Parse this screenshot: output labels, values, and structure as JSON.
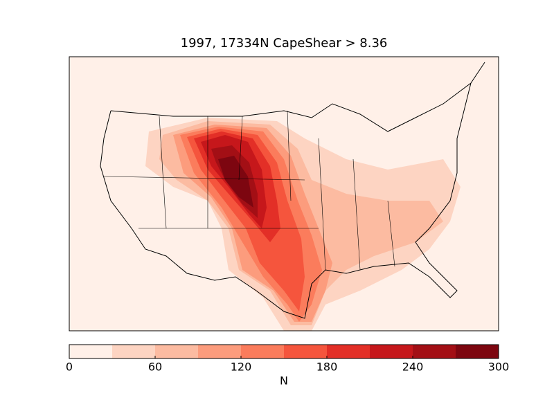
{
  "chart_data": {
    "type": "contour-map",
    "title": "1997, 17334N CapeShear > 8.36",
    "colorbar": {
      "label": "N",
      "lim": [
        0,
        300
      ],
      "ticks": [
        0,
        60,
        120,
        180,
        240,
        300
      ],
      "levels": [
        0,
        30,
        60,
        90,
        120,
        150,
        180,
        210,
        240,
        270,
        300
      ],
      "colors": [
        "#fff0e8",
        "#fdd4c2",
        "#fcbba1",
        "#fc9c7d",
        "#fb7c5c",
        "#f5553d",
        "#e32f27",
        "#c6171b",
        "#a30f15",
        "#7d0610"
      ]
    }
  }
}
